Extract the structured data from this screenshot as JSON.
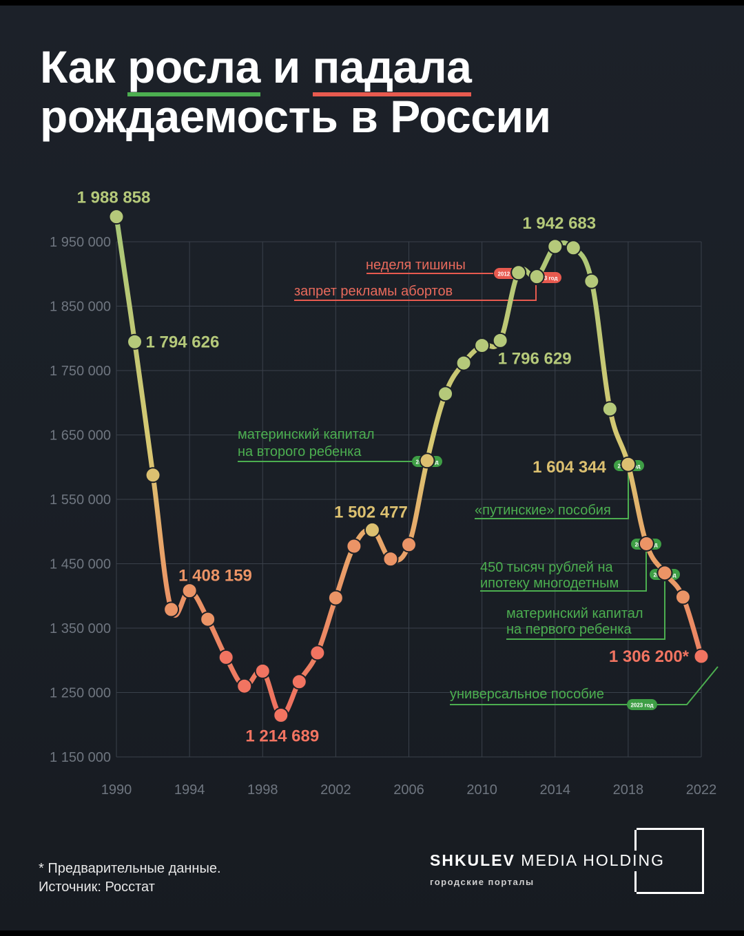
{
  "title": {
    "line1_part1": "Как ",
    "line1_word_green": "росла",
    "line1_part2": " и ",
    "line1_word_red": "падала",
    "line2": "рождаемость в России"
  },
  "footnote": {
    "line1": "* Предварительные данные.",
    "line2": "Источник: Росстат"
  },
  "brand": {
    "name_bold": "SHKULEV",
    "name_rest": " MEDIA HOLDING",
    "subtitle": "городские порталы"
  },
  "colors": {
    "grid": "#3a414b",
    "axis_text": "#6f7680",
    "green": "#a8c878",
    "yellow": "#e0c070",
    "red": "#f07560",
    "annotation_green": "#4caf50",
    "annotation_red": "#e85a4f"
  },
  "chart_data": {
    "type": "line",
    "title": "Как росла и падала рождаемость в России",
    "ylim": [
      1150000,
      2000000
    ],
    "xlim": [
      1990,
      2022
    ],
    "y_ticks": [
      "1 950 000",
      "1 850 000",
      "1 750 000",
      "1 650 000",
      "1 550 000",
      "1 450 000",
      "1 350 000",
      "1 250 000",
      "1 150 000"
    ],
    "y_tick_values": [
      1950000,
      1850000,
      1750000,
      1650000,
      1550000,
      1450000,
      1350000,
      1250000,
      1150000
    ],
    "x_ticks": [
      "1990",
      "1994",
      "1998",
      "2002",
      "2006",
      "2010",
      "2014",
      "2018",
      "2022"
    ],
    "x_tick_values": [
      1990,
      1994,
      1998,
      2002,
      2006,
      2010,
      2014,
      2018,
      2022
    ],
    "grid": true,
    "series": [
      {
        "x": [
          1990,
          1991,
          1992,
          1993,
          1994,
          1995,
          1996,
          1997,
          1998,
          1999,
          2000,
          2001,
          2002,
          2003,
          2004,
          2005,
          2006,
          2007,
          2008,
          2009,
          2010,
          2011,
          2012,
          2013,
          2014,
          2015,
          2016,
          2017,
          2018,
          2019,
          2020,
          2021,
          2022
        ],
        "values": [
          1988858,
          1794626,
          1587644,
          1378983,
          1408159,
          1363806,
          1304638,
          1259943,
          1283292,
          1214689,
          1266800,
          1311604,
          1396967,
          1477301,
          1502477,
          1457376,
          1479637,
          1610122,
          1713947,
          1761687,
          1788948,
          1796629,
          1902084,
          1895822,
          1942683,
          1940579,
          1888729,
          1690307,
          1604344,
          1481074,
          1435750,
          1398253,
          1306200
        ]
      }
    ],
    "value_labels": [
      {
        "x": 1990,
        "text": "1 988 858"
      },
      {
        "x": 1991,
        "text": "1 794 626"
      },
      {
        "x": 1994,
        "text": "1 408 159"
      },
      {
        "x": 1999,
        "text": "1 214 689"
      },
      {
        "x": 2004,
        "text": "1 502 477"
      },
      {
        "x": 2011,
        "text": "1 796 629"
      },
      {
        "x": 2014,
        "text": "1 942 683"
      },
      {
        "x": 2018,
        "text": "1 604 344"
      },
      {
        "x": 2022,
        "text": "1 306 200*"
      }
    ],
    "annotations": [
      {
        "text": "неделя тишины",
        "badge": "2012 год",
        "x": 2012,
        "color": "red"
      },
      {
        "text": "запрет рекламы абортов",
        "badge": "2013 год",
        "x": 2013,
        "color": "red"
      },
      {
        "text1": "материнский капитал",
        "text2": "на второго ребенка",
        "badge": "2007 год",
        "x": 2007,
        "color": "green"
      },
      {
        "text": "«путинские» пособия",
        "badge": "2018 год",
        "x": 2018,
        "color": "green"
      },
      {
        "text1": "450 тысяч рублей на",
        "text2": "ипотеку многодетным",
        "badge": "2019 год",
        "x": 2019,
        "color": "green"
      },
      {
        "text1": "материнский капитал",
        "text2": "на первого ребенка",
        "badge": "2020 год",
        "x": 2020,
        "color": "green"
      },
      {
        "text": "универсальное пособие",
        "badge": "2023 год",
        "x": 2023,
        "color": "green"
      }
    ]
  }
}
